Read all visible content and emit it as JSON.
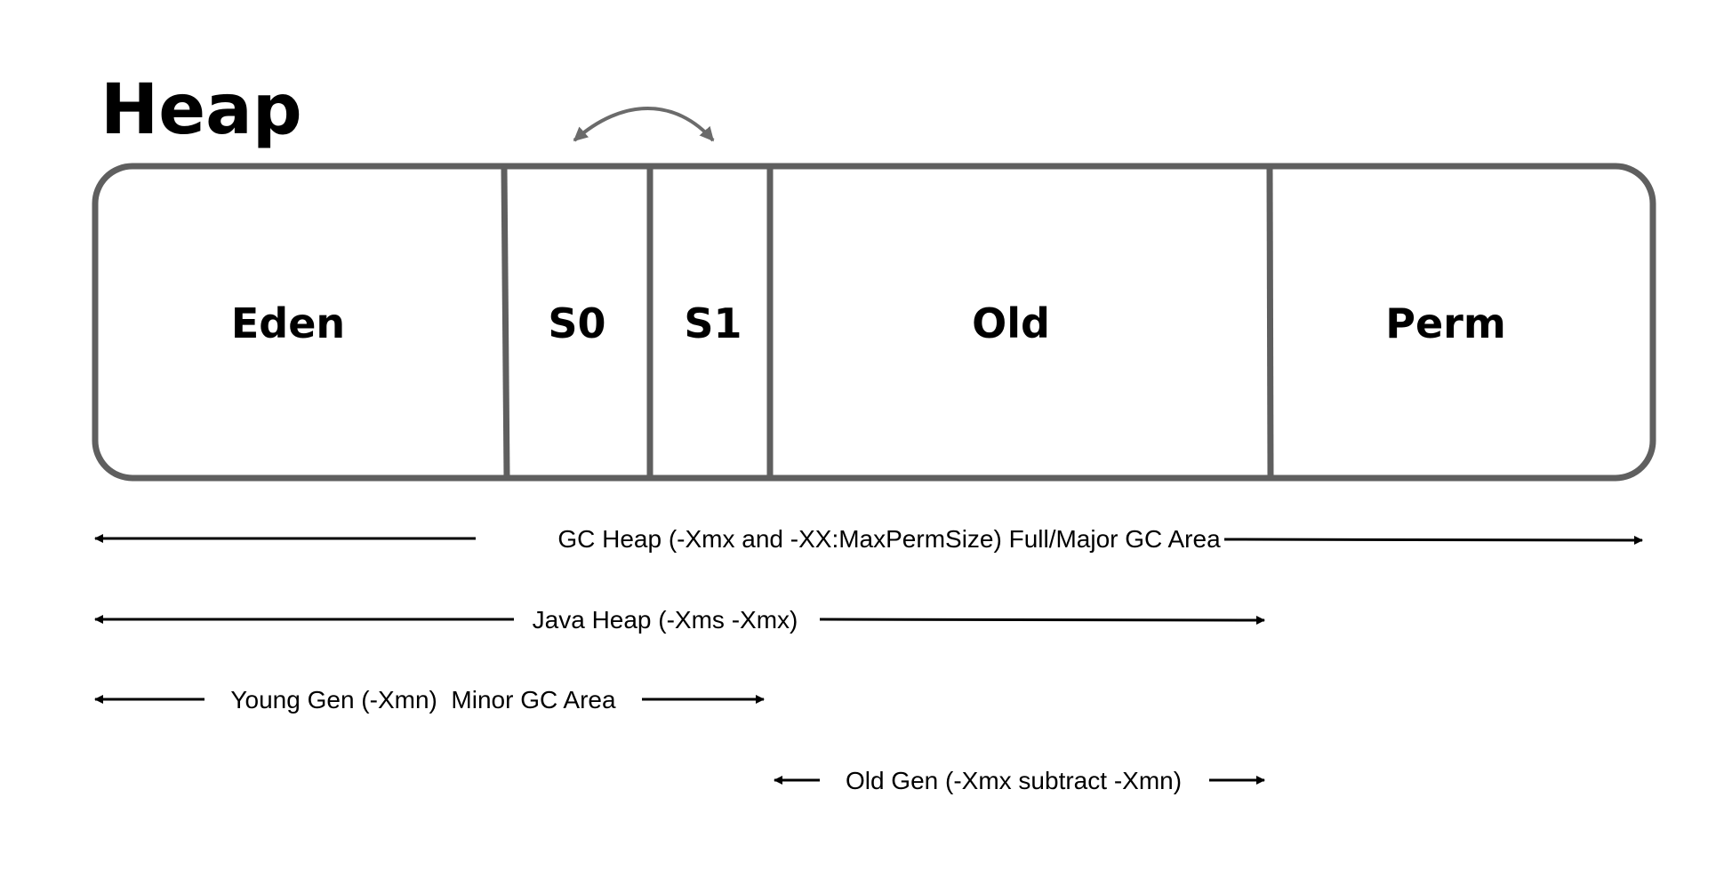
{
  "title": "Heap",
  "regions": [
    {
      "id": "eden",
      "label": "Eden"
    },
    {
      "id": "s0",
      "label": "S0"
    },
    {
      "id": "s1",
      "label": "S1"
    },
    {
      "id": "old",
      "label": "Old"
    },
    {
      "id": "perm",
      "label": "Perm"
    }
  ],
  "ranges": [
    {
      "id": "gc-heap",
      "label": "GC Heap (-Xmx and -XX:MaxPermSize) Full/Major GC Area",
      "from": "eden",
      "to": "perm"
    },
    {
      "id": "java-heap",
      "label": "Java Heap (-Xms -Xmx)",
      "from": "eden",
      "to": "old"
    },
    {
      "id": "young-gen",
      "label": "Young Gen (-Xmn)  Minor GC Area",
      "from": "eden",
      "to": "s1"
    },
    {
      "id": "old-gen",
      "label": "Old Gen (-Xmx subtract -Xmn)",
      "from": "old",
      "to": "old"
    }
  ],
  "colors": {
    "box_stroke": "#5f5f5f",
    "swap_arrow": "#6b6b6b",
    "range_arrow": "#000000"
  }
}
